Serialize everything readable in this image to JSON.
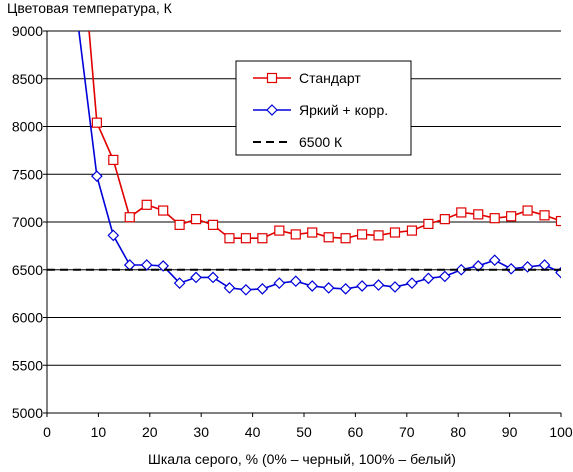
{
  "chart_data": {
    "type": "line",
    "title": "Цветовая температура, К",
    "xlabel": "Шкала серого, % (0% – черный, 100% – белый)",
    "ylabel": "",
    "xlim": [
      0,
      100
    ],
    "ylim": [
      5000,
      9000
    ],
    "x_ticks": [
      0,
      10,
      20,
      30,
      40,
      50,
      60,
      70,
      80,
      90,
      100
    ],
    "y_ticks": [
      5000,
      5500,
      6000,
      6500,
      7000,
      7500,
      8000,
      8500,
      9000
    ],
    "grid": "horizontal",
    "legend_position": "top-center",
    "series": [
      {
        "name": "Стандарт",
        "color": "#e00000",
        "marker": "square",
        "x": [
          9.7,
          12.9,
          16.1,
          19.4,
          22.6,
          25.8,
          29.0,
          32.3,
          35.5,
          38.7,
          41.9,
          45.2,
          48.4,
          51.6,
          54.8,
          58.1,
          61.3,
          64.5,
          67.7,
          71.0,
          74.2,
          77.4,
          80.6,
          83.9,
          87.1,
          90.3,
          93.5,
          96.8,
          100
        ],
        "y": [
          8040,
          7650,
          7050,
          7180,
          7120,
          6970,
          7030,
          6970,
          6830,
          6830,
          6830,
          6910,
          6870,
          6890,
          6840,
          6830,
          6870,
          6860,
          6890,
          6910,
          6980,
          7030,
          7100,
          7080,
          7040,
          7060,
          7120,
          7070,
          7010
        ],
        "lead_in": {
          "x": [
            8.2
          ],
          "y": [
            9000
          ]
        }
      },
      {
        "name": "Яркий + корр.",
        "color": "#0000d8",
        "marker": "diamond",
        "x": [
          9.7,
          12.9,
          16.1,
          19.4,
          22.6,
          25.8,
          29.0,
          32.3,
          35.5,
          38.7,
          41.9,
          45.2,
          48.4,
          51.6,
          54.8,
          58.1,
          61.3,
          64.5,
          67.7,
          71.0,
          74.2,
          77.4,
          80.6,
          83.9,
          87.1,
          90.3,
          93.5,
          96.8,
          100
        ],
        "y": [
          7480,
          6860,
          6550,
          6550,
          6540,
          6360,
          6420,
          6420,
          6310,
          6290,
          6300,
          6360,
          6380,
          6330,
          6310,
          6300,
          6330,
          6340,
          6320,
          6360,
          6410,
          6430,
          6500,
          6540,
          6600,
          6510,
          6530,
          6550,
          6470
        ],
        "lead_in": {
          "x": [
            6.2
          ],
          "y": [
            9000
          ]
        }
      },
      {
        "name": "6500 К",
        "color": "#000000",
        "style": "dashed",
        "x": [
          0,
          100
        ],
        "y": [
          6500,
          6500
        ]
      }
    ]
  }
}
